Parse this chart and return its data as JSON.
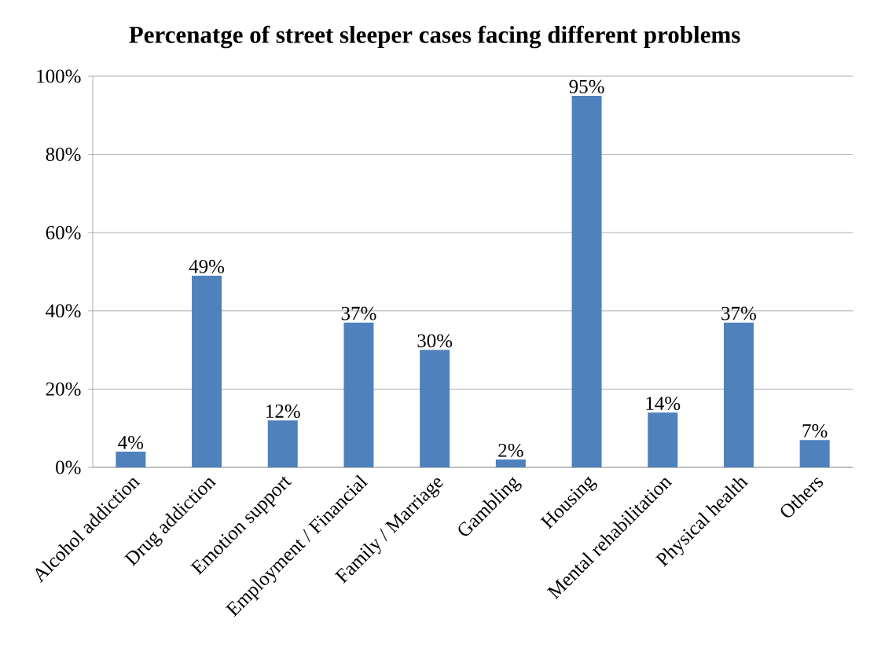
{
  "chart_data": {
    "type": "bar",
    "title": "Percenatge of street sleeper cases facing different problems",
    "categories": [
      "Alcohol addiction",
      "Drug addiction",
      "Emotion support",
      "Employment / Financial",
      "Family / Marriage",
      "Gambling",
      "Housing",
      "Mental rehabilitation",
      "Physical health",
      "Others"
    ],
    "values": [
      4,
      49,
      12,
      37,
      30,
      2,
      95,
      14,
      37,
      7
    ],
    "value_labels": [
      "4%",
      "49%",
      "12%",
      "37%",
      "30%",
      "2%",
      "95%",
      "14%",
      "37%",
      "7%"
    ],
    "color": "#4f81bd",
    "ylim": [
      0,
      100
    ],
    "yticks": [
      {
        "value": 0,
        "label": "0%"
      },
      {
        "value": 20,
        "label": "20%"
      },
      {
        "value": 40,
        "label": "40%"
      },
      {
        "value": 60,
        "label": "60%"
      },
      {
        "value": 80,
        "label": "80%"
      },
      {
        "value": 100,
        "label": "100%"
      }
    ],
    "grid": "y"
  }
}
